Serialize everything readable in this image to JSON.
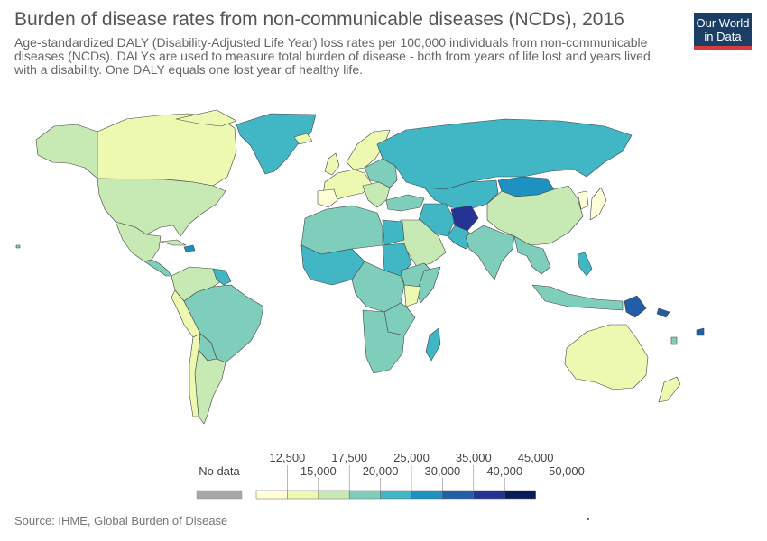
{
  "title": "Burden of disease rates from non-communicable diseases (NCDs), 2016",
  "subtitle": "Age-standardized DALY (Disability-Adjusted Life Year) loss rates per 100,000 individuals from non-communicable diseases (NCDs). DALYs are used to measure total burden of disease - both from years of life lost and years lived with a disability. One DALY equals one lost year of healthy life.",
  "logo": {
    "line1": "Our World",
    "line2": "in Data"
  },
  "legend": {
    "no_data_label": "No data",
    "no_data_color": "#a6a6a6",
    "top_labels": [
      "12,500",
      "17,500",
      "25,000",
      "35,000",
      "45,000"
    ],
    "bottom_labels": [
      "15,000",
      "20,000",
      "30,000",
      "40,000",
      "50,000"
    ],
    "colors": [
      "#ffffd9",
      "#edf8b1",
      "#c7e9b4",
      "#7fcdbb",
      "#41b6c4",
      "#1d91c0",
      "#225ea8",
      "#253494",
      "#081d58"
    ]
  },
  "source": "Source: IHME, Global Burden of Disease"
}
